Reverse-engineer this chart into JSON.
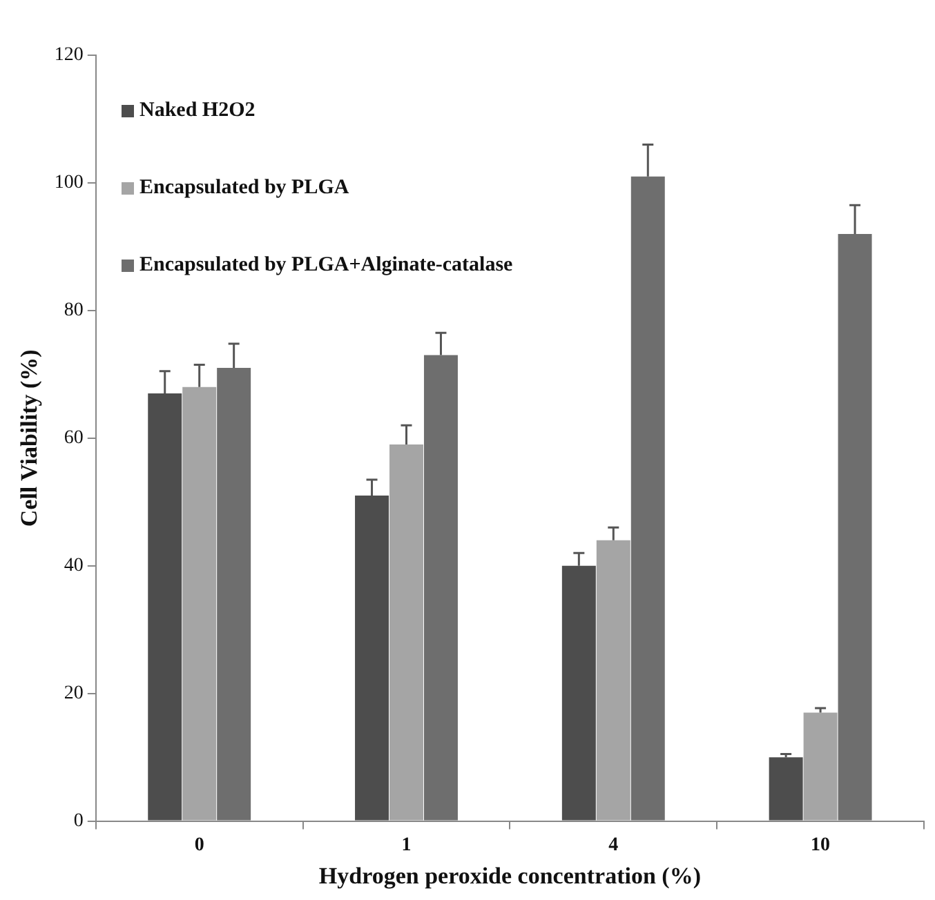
{
  "chart_data": {
    "type": "bar",
    "xlabel": "Hydrogen peroxide concentration (%)",
    "ylabel": "Cell Viability (%)",
    "categories": [
      "0",
      "1",
      "4",
      "10"
    ],
    "series": [
      {
        "name": "Naked H2O2",
        "color": "#4d4d4d",
        "values": [
          67,
          51,
          40,
          10
        ],
        "errors": [
          [
            67,
            70.5
          ],
          [
            51,
            53.5
          ],
          [
            40,
            42
          ],
          [
            10,
            10.5
          ]
        ]
      },
      {
        "name": "Encapsulated by PLGA",
        "color": "#a5a5a5",
        "values": [
          68,
          59,
          44,
          17
        ],
        "errors": [
          [
            68,
            71.5
          ],
          [
            59,
            62
          ],
          [
            44,
            46
          ],
          [
            17,
            17.7
          ]
        ]
      },
      {
        "name": "Encapsulated by PLGA+Alginate-catalase",
        "color": "#6e6e6e",
        "values": [
          71,
          73,
          101,
          92
        ],
        "errors": [
          [
            71,
            74.8
          ],
          [
            73,
            76.5
          ],
          [
            101,
            106
          ],
          [
            92,
            96.5
          ]
        ]
      }
    ],
    "ylim": [
      0,
      120
    ],
    "yticks": [
      0,
      20,
      40,
      60,
      80,
      100,
      120
    ],
    "grid": false,
    "legend": "top left"
  }
}
